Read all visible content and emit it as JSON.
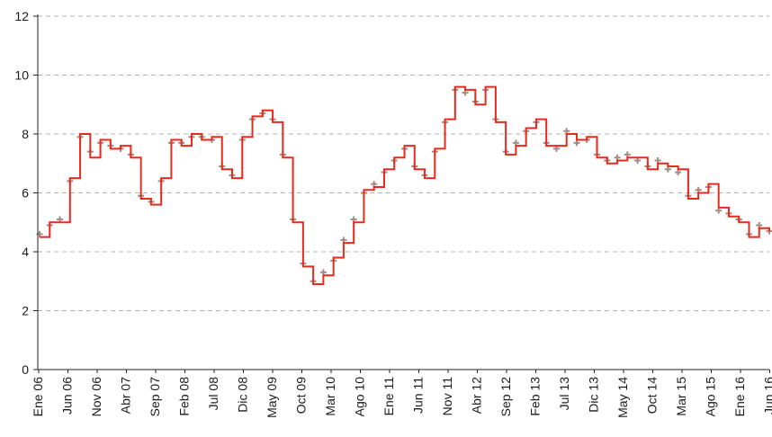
{
  "chart_data": {
    "type": "scatter",
    "title": "",
    "xlabel": "",
    "ylabel": "",
    "ylim": [
      0,
      12
    ],
    "yticks": [
      0,
      2,
      4,
      6,
      8,
      10,
      12
    ],
    "grid": true,
    "legend": "none",
    "x_tick_labels": [
      "Ene 06",
      "Jun 06",
      "Nov 06",
      "Abr 07",
      "Sep 07",
      "Feb 08",
      "Jul 08",
      "Dic 08",
      "May 09",
      "Oct 09",
      "Mar 10",
      "Ago 10",
      "Ene 11",
      "Jun 11",
      "Nov 11",
      "Abr 12",
      "Sep 12",
      "Feb 13",
      "Jul 13",
      "Dic 13",
      "May 14",
      "Oct 14",
      "Mar 15",
      "Ago 15",
      "Ene 16",
      "Jun 16"
    ],
    "colors": {
      "line": "#e8291c",
      "markers": "#a48a82"
    },
    "series": [
      {
        "type": "line",
        "values": [
          4.5,
          5.0,
          5.0,
          6.5,
          8.0,
          7.2,
          7.8,
          7.5,
          7.6,
          7.2,
          5.8,
          5.6,
          6.5,
          7.8,
          7.6,
          8.0,
          7.8,
          7.9,
          6.8,
          6.5,
          7.9,
          8.6,
          8.8,
          8.4,
          7.2,
          5.0,
          3.5,
          2.9,
          3.2,
          3.8,
          4.3,
          5.0,
          6.1,
          6.2,
          6.8,
          7.2,
          7.6,
          6.8,
          6.5,
          7.5,
          8.5,
          9.6,
          9.5,
          9.0,
          9.6,
          8.4,
          7.3,
          7.6,
          8.2,
          8.5,
          7.6,
          7.6,
          8.0,
          7.8,
          7.9,
          7.2,
          7.0,
          7.1,
          7.2,
          7.2,
          6.8,
          7.0,
          6.9,
          6.8,
          5.8,
          6.0,
          6.3,
          5.5,
          5.2,
          5.0,
          4.5,
          4.8,
          4.7
        ]
      },
      {
        "type": "scatter",
        "values": [
          4.6,
          4.9,
          5.1,
          6.4,
          7.9,
          7.4,
          7.7,
          7.6,
          7.5,
          7.3,
          5.9,
          5.7,
          6.4,
          7.7,
          7.7,
          7.9,
          7.9,
          7.8,
          6.9,
          6.6,
          7.8,
          8.5,
          8.7,
          8.5,
          7.3,
          5.1,
          3.6,
          3.0,
          3.3,
          3.7,
          4.4,
          5.1,
          6.0,
          6.3,
          6.7,
          7.1,
          7.5,
          6.9,
          6.6,
          7.4,
          8.4,
          9.5,
          9.4,
          9.1,
          9.5,
          8.5,
          7.4,
          7.7,
          8.1,
          8.4,
          7.7,
          7.5,
          8.1,
          7.7,
          7.8,
          7.3,
          7.1,
          7.2,
          7.3,
          7.1,
          6.9,
          7.1,
          6.8,
          6.7,
          5.9,
          6.1,
          6.2,
          5.4,
          5.3,
          5.1,
          4.6,
          4.9,
          4.7
        ]
      }
    ]
  }
}
